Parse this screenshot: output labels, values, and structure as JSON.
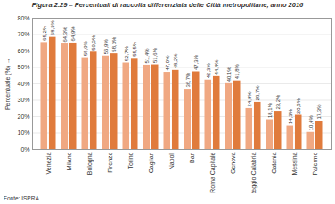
{
  "chart_data": {
    "type": "bar",
    "title": "Figura 2.29 – Percentuali di raccolta differenziata delle Città metropolitane, anno 2016",
    "y_label": "Percentuale (%)",
    "source": "Fonte: ISPRA",
    "categories": [
      "Venezia",
      "Milano",
      "Bologna",
      "Firenze",
      "Torino",
      "Cagliari",
      "Napoli",
      "Bari",
      "Roma Capitale",
      "Genova",
      "Reggio Calabria",
      "Catania",
      "Messina",
      "Palermo"
    ],
    "series": [
      {
        "color": "#f0a882",
        "values": [
          65.2,
          64.3,
          55.9,
          56.9,
          52.7,
          51.4,
          47.0,
          36.7,
          42.3,
          40.1,
          24.9,
          18.1,
          14.3,
          10.4
        ],
        "value_labels": [
          "65,2%",
          "64,3%",
          "55,9%",
          "56,9%",
          "52,7%",
          "51,4%",
          "47,0%",
          "36,7%",
          "42,3%",
          "40,1%",
          "24,9%",
          "18,1%",
          "14,3%",
          "10,4%"
        ]
      },
      {
        "color": "#e07b3c",
        "values": [
          68.3,
          64.9,
          59.3,
          58.3,
          55.5,
          51.6,
          48.2,
          47.3,
          44.4,
          41.8,
          28.7,
          23.2,
          20.8,
          17.3
        ],
        "value_labels": [
          "68,3%",
          "64,9%",
          "59,3%",
          "58,3%",
          "55,5%",
          "51,6%",
          "48,2%",
          "47,3%",
          "44,4%",
          "41,8%",
          "28,7%",
          "23,2%",
          "20,8%",
          "17,3%"
        ]
      }
    ],
    "ylim": [
      0,
      80
    ],
    "yticks": [
      {
        "value": 0,
        "label": "0%"
      },
      {
        "value": 10,
        "label": "10%"
      },
      {
        "value": 20,
        "label": "20%"
      },
      {
        "value": 30,
        "label": "30%"
      },
      {
        "value": 40,
        "label": "40%"
      },
      {
        "value": 50,
        "label": "50%"
      },
      {
        "value": 60,
        "label": "60%"
      },
      {
        "value": 70,
        "label": "70%"
      },
      {
        "value": 80,
        "label": "80%"
      }
    ],
    "grid": true,
    "data_labels": true
  }
}
